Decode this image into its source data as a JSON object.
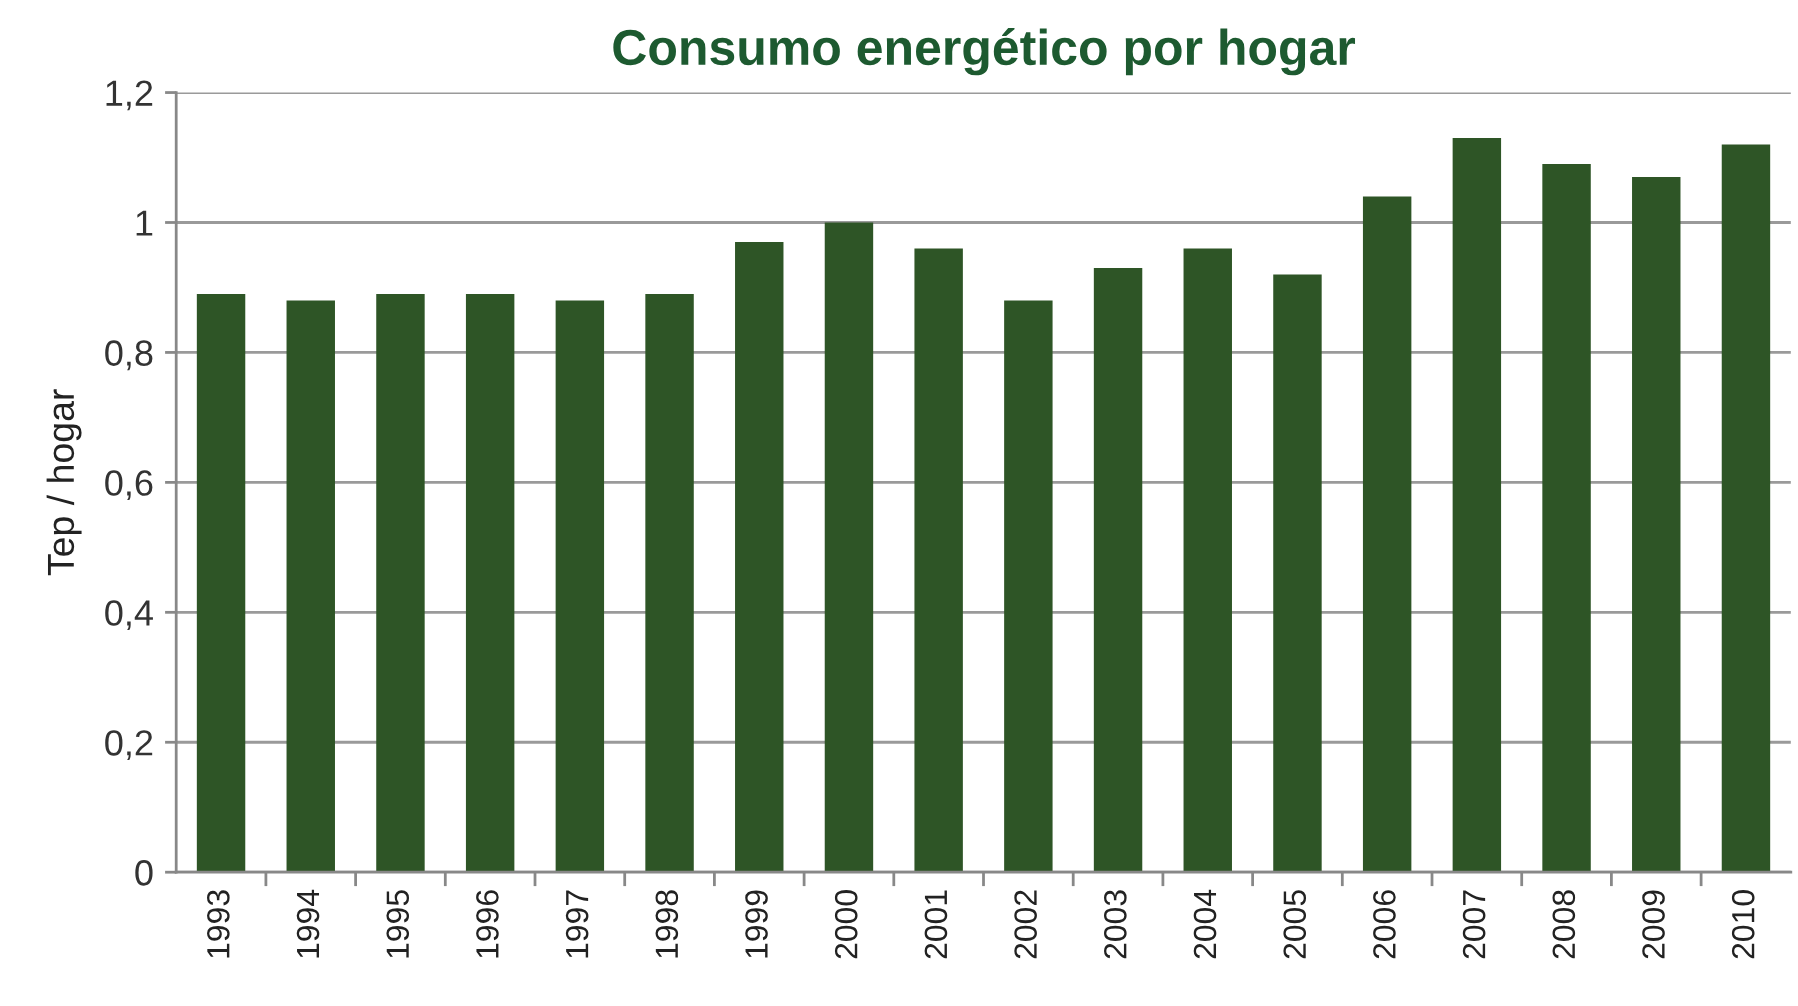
{
  "chart_data": {
    "type": "bar",
    "title": "Consumo energético por hogar",
    "ylabel": "Tep / hogar",
    "categories": [
      "1993",
      "1994",
      "1995",
      "1996",
      "1997",
      "1998",
      "1999",
      "2000",
      "2001",
      "2002",
      "2003",
      "2004",
      "2005",
      "2006",
      "2007",
      "2008",
      "2009",
      "2010"
    ],
    "values": [
      0.89,
      0.88,
      0.89,
      0.89,
      0.88,
      0.89,
      0.97,
      1.0,
      0.96,
      0.88,
      0.93,
      0.96,
      0.92,
      1.04,
      1.13,
      1.09,
      1.07,
      1.12
    ],
    "color": "#2e5526",
    "ylim": [
      0,
      1.2
    ],
    "yticks": [
      0,
      {
        "value": 0.2,
        "label": "0,2"
      },
      {
        "value": 0.4,
        "label": "0,4"
      },
      {
        "value": 0.6,
        "label": "0,6"
      },
      {
        "value": 0.8,
        "label": "0,8"
      },
      1,
      {
        "value": 1.2,
        "label": "1,2"
      }
    ],
    "grid": "y"
  }
}
